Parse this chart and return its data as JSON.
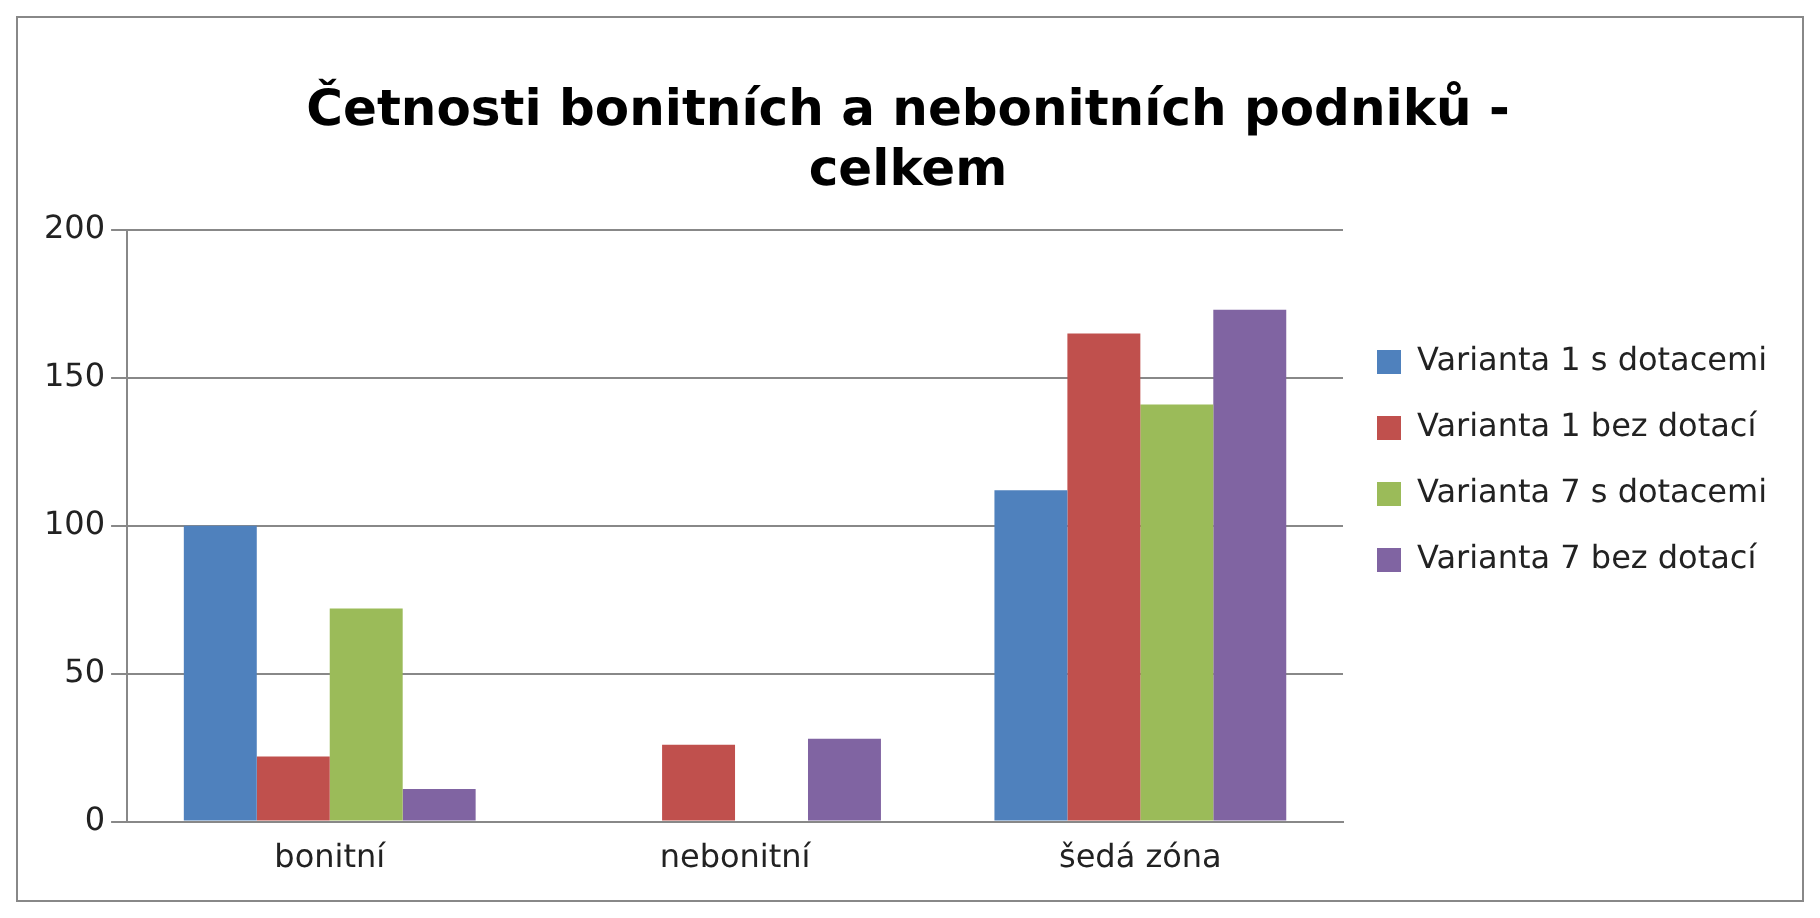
{
  "chart_data": {
    "type": "bar",
    "title": "Četnosti bonitních a nebonitních podniků - celkem",
    "categories": [
      "bonitní",
      "nebonitní",
      "šedá zóna"
    ],
    "series": [
      {
        "name": "Varianta 1 s dotacemi",
        "color": "#4f81bd",
        "values": [
          100,
          0,
          112
        ]
      },
      {
        "name": "Varianta 1 bez dotací",
        "color": "#c0504d",
        "values": [
          22,
          26,
          165
        ]
      },
      {
        "name": "Varianta 7 s dotacemi",
        "color": "#9bbb59",
        "values": [
          72,
          0,
          141
        ]
      },
      {
        "name": "Varianta 7 bez dotací",
        "color": "#8064a2",
        "values": [
          11,
          28,
          173
        ]
      }
    ],
    "ylim": [
      0,
      200
    ],
    "yticks": [
      0,
      50,
      100,
      150,
      200
    ],
    "grid": "y",
    "legend": "right"
  }
}
